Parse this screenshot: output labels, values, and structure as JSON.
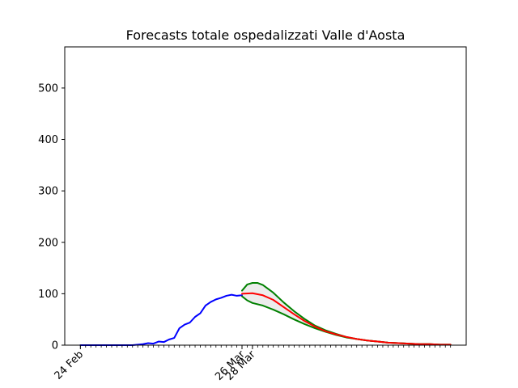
{
  "chart_data": {
    "type": "line",
    "title": "Forecasts totale ospedalizzati Valle d'Aosta",
    "xlabel": "",
    "ylabel": "",
    "ylim": [
      0,
      580
    ],
    "yticks": [
      0,
      100,
      200,
      300,
      400,
      500
    ],
    "x_start_date": "2020-02-24",
    "xlim_days": [
      -3,
      74
    ],
    "xticklabels": [
      {
        "day": 0,
        "label": "24 Feb"
      },
      {
        "day": 31,
        "label": "26 Mar"
      },
      {
        "day": 33,
        "label": "28 Mar"
      }
    ],
    "minor_tick_start_day": 0,
    "minor_tick_end_day": 71,
    "grid": false,
    "colors": {
      "observed": "#0000ff",
      "forecast": "#ff0000",
      "bounds": "#008000",
      "band": "#ececec"
    },
    "series": [
      {
        "role": "observed",
        "x": [
          0,
          1,
          2,
          3,
          4,
          5,
          6,
          7,
          8,
          9,
          10,
          11,
          12,
          13,
          14,
          15,
          16,
          17,
          18,
          19,
          20,
          21,
          22,
          23,
          24,
          25,
          26,
          27,
          28,
          29,
          30,
          31
        ],
        "values": [
          0,
          0,
          0,
          0,
          0,
          0,
          0,
          0,
          0,
          0,
          0,
          1,
          2,
          4,
          3,
          7,
          6,
          11,
          14,
          33,
          40,
          44,
          55,
          62,
          77,
          84,
          89,
          92,
          96,
          98,
          96,
          97
        ]
      },
      {
        "role": "forecast",
        "x": [
          31,
          33,
          35,
          37,
          39,
          41,
          43,
          45,
          47,
          49,
          51,
          53,
          55,
          57,
          59,
          61,
          63,
          65,
          67,
          69,
          71
        ],
        "values": [
          100,
          101,
          97,
          88,
          74,
          60,
          47,
          36,
          27,
          21,
          16,
          12,
          9,
          7,
          5,
          4,
          3,
          2,
          2,
          1,
          1
        ]
      },
      {
        "role": "upper",
        "x": [
          31,
          32,
          33,
          34,
          35,
          37,
          39,
          41,
          43,
          45,
          47,
          49,
          51,
          53,
          55,
          57,
          59,
          61,
          63,
          65,
          67,
          69,
          71
        ],
        "values": [
          106,
          118,
          121,
          121,
          117,
          102,
          83,
          66,
          51,
          38,
          29,
          22,
          16,
          12,
          9,
          7,
          5,
          4,
          3,
          2,
          2,
          1,
          1
        ]
      },
      {
        "role": "lower",
        "x": [
          31,
          32,
          33,
          35,
          37,
          39,
          41,
          43,
          45,
          47,
          49,
          51,
          53,
          55,
          57,
          59,
          61,
          63,
          65,
          67,
          69,
          71
        ],
        "values": [
          95,
          87,
          82,
          77,
          69,
          60,
          50,
          41,
          33,
          26,
          20,
          15,
          12,
          9,
          7,
          5,
          4,
          3,
          2,
          2,
          1,
          1
        ]
      }
    ]
  }
}
